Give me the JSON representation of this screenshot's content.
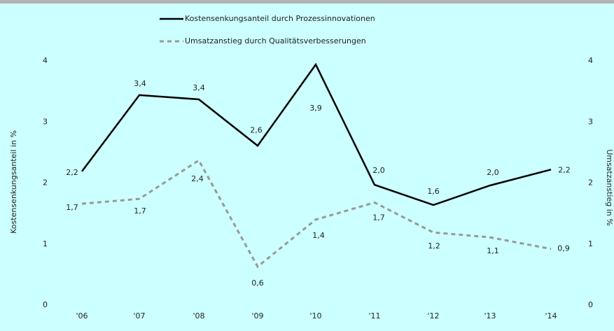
{
  "chart_data": {
    "type": "line",
    "categories": [
      "'06",
      "'07",
      "'08",
      "'09",
      "'10",
      "'11",
      "'12",
      "'13",
      "'14"
    ],
    "series": [
      {
        "name": "Kostensenkungsanteil durch Prozessinnovationen",
        "color": "#000000",
        "dashed": false,
        "axis": "y",
        "values": [
          2.19,
          3.44,
          3.37,
          2.61,
          3.94,
          1.97,
          1.64,
          1.96,
          2.22
        ],
        "value_labels": [
          "2,2",
          "3,4",
          "3,4",
          "2,6",
          "3,9",
          "2,0",
          "1,6",
          "2,0",
          "2,2"
        ]
      },
      {
        "name": "Umsatzanstieg durch Qualitätsverbesserungen",
        "color": "#999999",
        "dashed": true,
        "axis": "y2",
        "values": [
          1.66,
          1.74,
          2.37,
          0.63,
          1.4,
          1.68,
          1.19,
          1.11,
          0.92
        ],
        "value_labels": [
          "1,7",
          "1,7",
          "2,4",
          "0,6",
          "1,4",
          "1,7",
          "1,2",
          "1,1",
          "0,9"
        ]
      }
    ],
    "ylabel": "Kostensenkungsanteil in %",
    "y2label": "Umsatzanstieg in %",
    "ylim": [
      0,
      4
    ],
    "yticks": [
      0,
      1,
      2,
      3,
      4
    ],
    "y2lim": [
      0,
      4
    ],
    "y2ticks": [
      0,
      1,
      2,
      3,
      4
    ],
    "grid": false
  }
}
